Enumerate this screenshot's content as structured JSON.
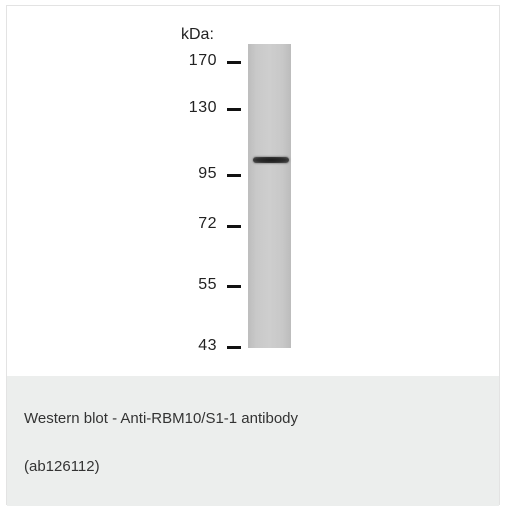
{
  "figure": {
    "unit_label": "kDa:",
    "markers": [
      "170",
      "130",
      "95",
      "72",
      "55",
      "43"
    ]
  },
  "caption": {
    "line1": "Western blot - Anti-RBM10/S1-1 antibody",
    "line2": "(ab126112)"
  },
  "colors": {
    "caption_background": "#eceeed",
    "lane": "#c9c9c9",
    "band": "#222222"
  }
}
